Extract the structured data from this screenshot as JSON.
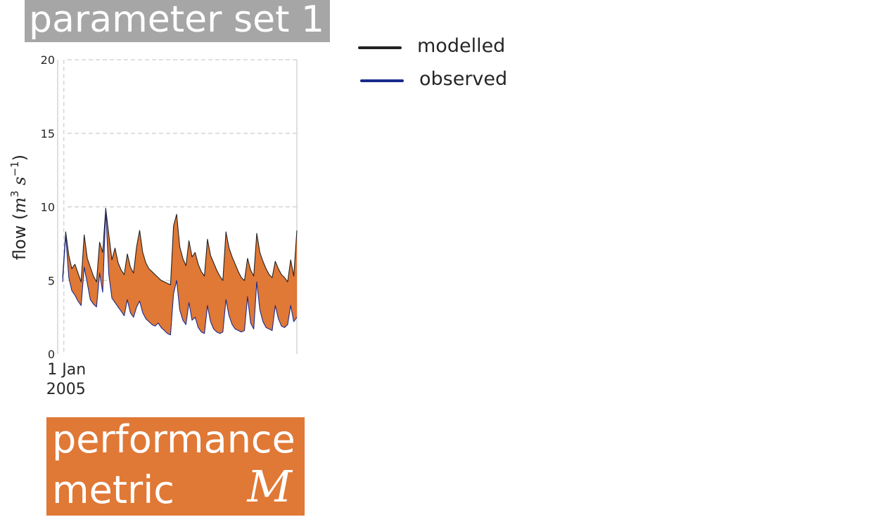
{
  "header": {
    "title": "parameter set 1"
  },
  "metric_box": {
    "line1": "performance",
    "line2": "metric",
    "symbol": "M"
  },
  "legend": {
    "items": [
      {
        "label": "modelled",
        "color": "#222222"
      },
      {
        "label": "observed",
        "color": "#1a2a8c"
      }
    ]
  },
  "colors": {
    "fill": "#e07836",
    "grid": "#cccccc"
  },
  "chart_data": {
    "type": "line",
    "ylabel": "flow (m^3 s^-1)",
    "ylim": [
      0,
      20
    ],
    "yticks": [
      "0",
      "5",
      "10",
      "15",
      "20"
    ],
    "x_tick_label": [
      "1 Jan",
      "2005"
    ],
    "grid": true,
    "legend_position": "outside right",
    "fill_between": true,
    "x": [
      "2004-12-30",
      "2005-01-04",
      "2005-01-09",
      "2005-01-14",
      "2005-01-19",
      "2005-01-24",
      "2005-01-29",
      "2005-02-03",
      "2005-02-08",
      "2005-02-13",
      "2005-02-18",
      "2005-02-23",
      "2005-02-28",
      "2005-03-05",
      "2005-03-10",
      "2005-03-15",
      "2005-03-20",
      "2005-03-25",
      "2005-03-30",
      "2005-04-04",
      "2005-04-09",
      "2005-04-14",
      "2005-04-19",
      "2005-04-24",
      "2005-04-29",
      "2005-05-04",
      "2005-05-09",
      "2005-05-14",
      "2005-05-19",
      "2005-05-24",
      "2005-05-29",
      "2005-06-03",
      "2005-06-08",
      "2005-06-13",
      "2005-06-18",
      "2005-06-23",
      "2005-06-28",
      "2005-07-03",
      "2005-07-08",
      "2005-07-13",
      "2005-07-18",
      "2005-07-23",
      "2005-07-28",
      "2005-08-02",
      "2005-08-07",
      "2005-08-12",
      "2005-08-17",
      "2005-08-22",
      "2005-08-27",
      "2005-09-01",
      "2005-09-06",
      "2005-09-11",
      "2005-09-16",
      "2005-09-21",
      "2005-09-26",
      "2005-10-01",
      "2005-10-06",
      "2005-10-11",
      "2005-10-16",
      "2005-10-21",
      "2005-10-26",
      "2005-10-31",
      "2005-11-05",
      "2005-11-10",
      "2005-11-15",
      "2005-11-20",
      "2005-11-25",
      "2005-11-30",
      "2005-12-05",
      "2005-12-10",
      "2005-12-15",
      "2005-12-20",
      "2005-12-25",
      "2005-12-30",
      "2006-01-04",
      "2006-01-09",
      "2006-01-14"
    ],
    "series": [
      {
        "name": "modelled",
        "values": [
          5.2,
          8.3,
          6.7,
          5.8,
          6.1,
          5.5,
          4.9,
          8.1,
          6.5,
          5.9,
          5.3,
          4.9,
          7.6,
          6.9,
          9.9,
          8.1,
          6.4,
          7.2,
          6.2,
          5.7,
          5.4,
          6.8,
          5.9,
          5.5,
          7.3,
          8.4,
          6.9,
          6.2,
          5.8,
          5.6,
          5.4,
          5.2,
          5.0,
          4.9,
          4.8,
          4.7,
          8.7,
          9.5,
          7.3,
          6.5,
          6.0,
          7.7,
          6.6,
          6.9,
          6.1,
          5.6,
          5.3,
          7.8,
          6.7,
          6.2,
          5.7,
          5.3,
          5.0,
          8.3,
          7.2,
          6.6,
          6.1,
          5.6,
          5.2,
          5.0,
          6.5,
          5.7,
          5.3,
          8.2,
          6.9,
          6.3,
          5.8,
          5.4,
          5.2,
          6.3,
          5.8,
          5.4,
          5.2,
          4.9,
          6.4,
          5.3,
          8.4
        ],
        "color": "#222222"
      },
      {
        "name": "observed",
        "values": [
          4.9,
          8.1,
          5.2,
          4.3,
          4.0,
          3.6,
          3.3,
          5.9,
          4.8,
          3.7,
          3.4,
          3.2,
          5.5,
          4.2,
          9.8,
          5.4,
          3.8,
          3.5,
          3.2,
          2.9,
          2.6,
          3.7,
          2.8,
          2.5,
          3.2,
          3.6,
          2.8,
          2.4,
          2.2,
          2.0,
          1.9,
          2.1,
          1.8,
          1.6,
          1.4,
          1.3,
          4.1,
          5.0,
          3.0,
          2.3,
          2.0,
          3.5,
          2.3,
          2.5,
          1.8,
          1.5,
          1.4,
          3.3,
          2.2,
          1.7,
          1.5,
          1.4,
          1.5,
          3.7,
          2.6,
          2.0,
          1.7,
          1.6,
          1.5,
          1.6,
          3.9,
          2.1,
          1.7,
          4.9,
          3.0,
          2.2,
          1.8,
          1.7,
          1.6,
          3.3,
          2.4,
          1.9,
          1.8,
          2.0,
          3.3,
          2.2,
          2.5
        ],
        "color": "#1a2a8c"
      }
    ]
  }
}
